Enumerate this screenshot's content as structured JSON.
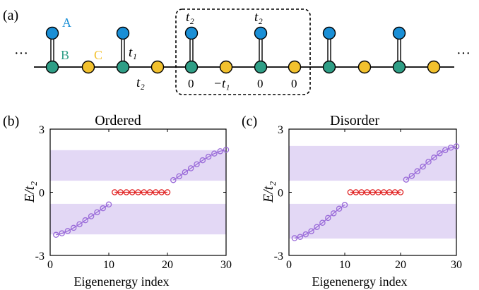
{
  "colors": {
    "A": "#1a8fd6",
    "B": "#2f9e86",
    "C": "#f2c12e",
    "line": "#000000",
    "band": "#e3d8f5",
    "bulk": "#9a6bd9",
    "zero": "#e02222"
  },
  "panel_a": {
    "label": "(a)",
    "ellipsis_left": "···",
    "ellipsis_right": "···",
    "site_A": "A",
    "site_B": "B",
    "site_C": "C",
    "t1": "t₁",
    "t2": "t₂",
    "cell_top_left": "t₂",
    "cell_top_right": "t₂",
    "cell_bottom": [
      "0",
      "−t₁",
      "0",
      "0"
    ]
  },
  "chart_data": [
    {
      "panel": "(b)",
      "type": "scatter",
      "title": "Ordered",
      "xlabel": "Eigenenergy index",
      "ylabel": "E/t₂",
      "xlim": [
        0,
        30
      ],
      "ylim": [
        -3,
        3
      ],
      "xticks": [
        "0",
        "10",
        "20",
        "30"
      ],
      "yticks": [
        "-3",
        "0",
        "3"
      ],
      "bands": [
        [
          0.55,
          2.0
        ],
        [
          -2.0,
          -0.55
        ]
      ],
      "series": [
        {
          "color_role": "bulk",
          "x": [
            1,
            2,
            3,
            4,
            5,
            6,
            7,
            8,
            9,
            10
          ],
          "y": [
            -2.02,
            -1.95,
            -1.84,
            -1.69,
            -1.52,
            -1.33,
            -1.14,
            -0.95,
            -0.76,
            -0.58
          ]
        },
        {
          "color_role": "zero",
          "x": [
            11,
            12,
            13,
            14,
            15,
            16,
            17,
            18,
            19,
            20
          ],
          "y": [
            0,
            0,
            0,
            0,
            0,
            0,
            0,
            0,
            0,
            0
          ]
        },
        {
          "color_role": "bulk",
          "x": [
            21,
            22,
            23,
            24,
            25,
            26,
            27,
            28,
            29,
            30
          ],
          "y": [
            0.58,
            0.76,
            0.95,
            1.14,
            1.33,
            1.52,
            1.69,
            1.84,
            1.95,
            2.02
          ]
        }
      ]
    },
    {
      "panel": "(c)",
      "type": "scatter",
      "title": "Disorder",
      "xlabel": "Eigenenergy index",
      "ylabel": "E/t₂",
      "xlim": [
        0,
        30
      ],
      "ylim": [
        -3,
        3
      ],
      "xticks": [
        "0",
        "10",
        "20",
        "30"
      ],
      "yticks": [
        "-3",
        "0",
        "3"
      ],
      "bands": [
        [
          0.55,
          2.2
        ],
        [
          -2.2,
          -0.55
        ]
      ],
      "series": [
        {
          "color_role": "bulk",
          "x": [
            1,
            2,
            3,
            4,
            5,
            6,
            7,
            8,
            9,
            10
          ],
          "y": [
            -2.18,
            -2.12,
            -2.0,
            -1.85,
            -1.65,
            -1.45,
            -1.22,
            -1.0,
            -0.78,
            -0.6
          ]
        },
        {
          "color_role": "zero",
          "x": [
            11,
            12,
            13,
            14,
            15,
            16,
            17,
            18,
            19,
            20
          ],
          "y": [
            0,
            0,
            0,
            0,
            0,
            0,
            0,
            0,
            0,
            0
          ]
        },
        {
          "color_role": "bulk",
          "x": [
            21,
            22,
            23,
            24,
            25,
            26,
            27,
            28,
            29,
            30
          ],
          "y": [
            0.6,
            0.78,
            1.0,
            1.22,
            1.45,
            1.65,
            1.85,
            2.0,
            2.12,
            2.18
          ]
        }
      ]
    }
  ]
}
